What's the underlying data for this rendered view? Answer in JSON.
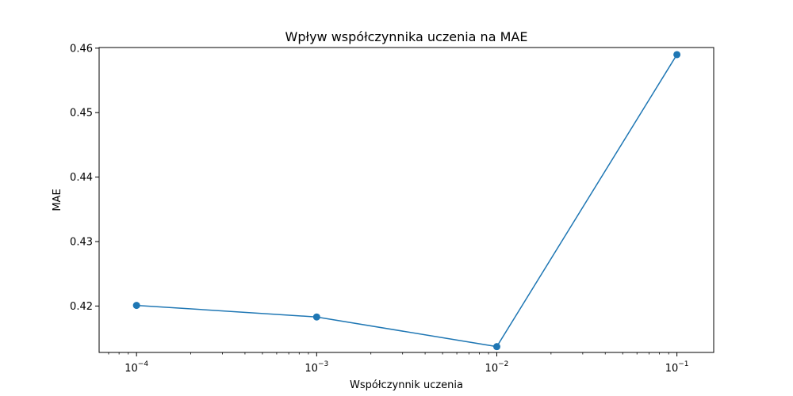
{
  "chart_data": {
    "type": "line",
    "title": "Wpływ współczynnika uczenia na MAE",
    "xlabel": "Współczynnik uczenia",
    "ylabel": "MAE",
    "xscale": "log",
    "xlim": [
      6.2e-05,
      0.16
    ],
    "ylim": [
      0.4128,
      0.4601
    ],
    "xticks": [
      {
        "value": 0.0001,
        "base": "10",
        "exp": "−4"
      },
      {
        "value": 0.001,
        "base": "10",
        "exp": "−3"
      },
      {
        "value": 0.01,
        "base": "10",
        "exp": "−2"
      },
      {
        "value": 0.1,
        "base": "10",
        "exp": "−1"
      }
    ],
    "yticks": [
      {
        "value": 0.42,
        "label": "0.42"
      },
      {
        "value": 0.43,
        "label": "0.43"
      },
      {
        "value": 0.44,
        "label": "0.44"
      },
      {
        "value": 0.45,
        "label": "0.45"
      },
      {
        "value": 0.46,
        "label": "0.46"
      }
    ],
    "grid": false,
    "series": [
      {
        "color": "#1f77b4",
        "marker": "circle",
        "x": [
          0.0001,
          0.001,
          0.01,
          0.1
        ],
        "y": [
          0.4201,
          0.4183,
          0.4137,
          0.459
        ]
      }
    ]
  }
}
